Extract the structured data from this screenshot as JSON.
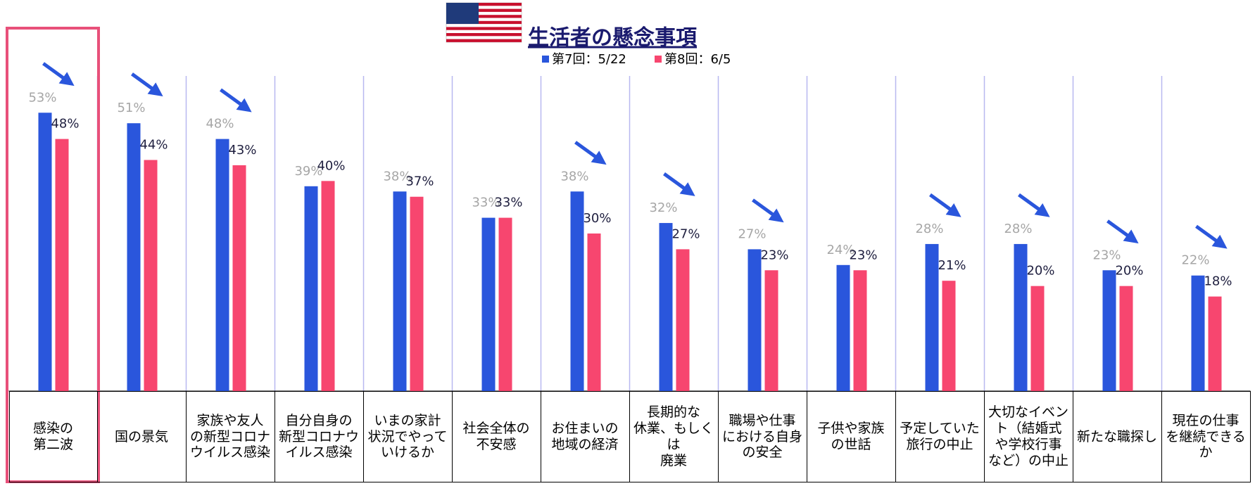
{
  "chart_data": {
    "type": "bar",
    "title": "生活者の懸念事項",
    "categories": [
      "感染の\n第二波",
      "国の景気",
      "家族や友人\nの新型コロナ\nウイルス感染",
      "自分自身の\n新型コロナウ\nイルス感染",
      "いまの家計\n状況でやって\nいけるか",
      "社会全体の\n不安感",
      "お住まいの\n地域の経済",
      "長期的な\n休業、もしくは\n廃業",
      "職場や仕事\nにおける自身\nの安全",
      "子供や家族\nの世話",
      "予定していた\n旅行の中止",
      "大切なイベン\nト（結婚式\nや学校行事\nなど）の中止",
      "新たな職探し",
      "現在の仕事\nを継続できる\nか"
    ],
    "series": [
      {
        "name": "第7回：5/22",
        "color": "#2a56dc",
        "values": [
          53,
          51,
          48,
          39,
          38,
          33,
          38,
          32,
          27,
          24,
          28,
          28,
          23,
          22
        ],
        "value_labels": [
          "53%",
          "51%",
          "48%",
          "39%",
          "38%",
          "33%",
          "38%",
          "32%",
          "27%",
          "24%",
          "28%",
          "28%",
          "23%",
          "22%"
        ]
      },
      {
        "name": "第8回：6/5",
        "color": "#f7466f",
        "values": [
          48,
          44,
          43,
          40,
          37,
          33,
          30,
          27,
          23,
          23,
          21,
          20,
          20,
          18
        ],
        "value_labels": [
          "48%",
          "44%",
          "43%",
          "40%",
          "37%",
          "33%",
          "30%",
          "27%",
          "23%",
          "23%",
          "21%",
          "20%",
          "20%",
          "18%"
        ]
      }
    ],
    "ylim": [
      0,
      60
    ]
  }
}
